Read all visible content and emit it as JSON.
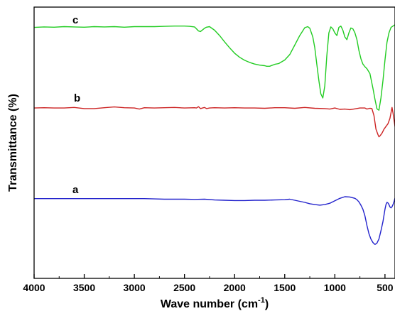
{
  "chart_data": {
    "type": "line",
    "title": "",
    "xlabel": "Wave number (cm",
    "xlabel_sup": "-1",
    "xlabel_close": ")",
    "ylabel": "Transmittance (%)",
    "x_reversed": true,
    "xlim": [
      4000,
      400
    ],
    "x_ticks": [
      "4000",
      "3500",
      "3000",
      "2500",
      "2000",
      "1500",
      "1000",
      "500"
    ],
    "x_tick_values": [
      4000,
      3500,
      3000,
      2500,
      2000,
      1500,
      1000,
      500
    ],
    "ylim": [
      0,
      100
    ],
    "y_ticks_labeled": false,
    "grid": false,
    "legend": "none",
    "series": [
      {
        "name": "c",
        "color": "#22cc22",
        "x": [
          4000,
          3900,
          3800,
          3700,
          3600,
          3500,
          3400,
          3300,
          3200,
          3100,
          3000,
          2900,
          2800,
          2700,
          2600,
          2500,
          2450,
          2400,
          2380,
          2360,
          2340,
          2320,
          2300,
          2280,
          2250,
          2200,
          2150,
          2100,
          2050,
          2000,
          1950,
          1900,
          1850,
          1800,
          1750,
          1700,
          1680,
          1650,
          1620,
          1600,
          1560,
          1500,
          1450,
          1400,
          1350,
          1300,
          1270,
          1250,
          1220,
          1200,
          1180,
          1160,
          1140,
          1120,
          1100,
          1080,
          1060,
          1040,
          1020,
          1000,
          980,
          960,
          940,
          920,
          900,
          880,
          860,
          840,
          820,
          800,
          780,
          760,
          740,
          720,
          700,
          680,
          650,
          620,
          600,
          580,
          560,
          540,
          520,
          500,
          480,
          460,
          440,
          420,
          400
        ],
        "y": [
          92.5,
          92.7,
          92.6,
          92.8,
          92.7,
          92.6,
          92.8,
          92.7,
          92.8,
          92.6,
          92.8,
          92.8,
          92.8,
          92.9,
          93.0,
          93.0,
          92.9,
          92.7,
          92.0,
          91.2,
          91.0,
          91.6,
          92.2,
          92.6,
          92.8,
          91.5,
          89.5,
          87.2,
          85.0,
          83.0,
          81.5,
          80.4,
          79.6,
          79.0,
          78.6,
          78.4,
          78.2,
          78.2,
          78.6,
          78.9,
          79.2,
          80.5,
          82.5,
          86.0,
          89.5,
          92.4,
          92.8,
          92.2,
          89.0,
          85.0,
          79.0,
          73.0,
          68.0,
          66.5,
          71.0,
          82.0,
          90.5,
          92.7,
          92.0,
          90.5,
          89.5,
          92.5,
          93.0,
          91.5,
          89.0,
          88.0,
          90.5,
          92.3,
          92.0,
          90.5,
          88.0,
          84.0,
          81.0,
          79.0,
          78.0,
          77.3,
          75.5,
          70.0,
          66.0,
          62.5,
          62.0,
          66.5,
          73.0,
          80.5,
          87.0,
          90.5,
          92.5,
          93.0,
          93.5
        ],
        "label": "c"
      },
      {
        "name": "b",
        "color": "#cc2222",
        "x": [
          4000,
          3900,
          3800,
          3700,
          3600,
          3500,
          3400,
          3300,
          3200,
          3100,
          3000,
          2950,
          2900,
          2800,
          2700,
          2600,
          2500,
          2400,
          2380,
          2360,
          2340,
          2320,
          2300,
          2280,
          2250,
          2200,
          2100,
          2000,
          1900,
          1800,
          1700,
          1600,
          1500,
          1400,
          1300,
          1200,
          1100,
          1050,
          1000,
          950,
          900,
          850,
          800,
          750,
          700,
          680,
          650,
          630,
          610,
          590,
          570,
          560,
          550,
          530,
          510,
          490,
          470,
          450,
          430,
          420,
          410,
          400
        ],
        "y": [
          62.8,
          62.9,
          62.8,
          62.8,
          63.0,
          62.6,
          62.6,
          62.9,
          63.2,
          62.9,
          62.8,
          62.4,
          62.9,
          62.8,
          62.9,
          63.0,
          62.8,
          62.9,
          62.8,
          63.3,
          62.6,
          62.8,
          63.0,
          62.6,
          62.8,
          62.9,
          62.8,
          62.9,
          62.8,
          62.8,
          62.7,
          62.9,
          62.9,
          62.7,
          63.0,
          62.7,
          62.6,
          62.4,
          62.8,
          62.3,
          62.4,
          62.2,
          62.5,
          62.8,
          62.8,
          62.4,
          62.7,
          62.6,
          60.0,
          55.0,
          53.0,
          52.2,
          52.5,
          53.5,
          55.0,
          56.0,
          57.0,
          59.0,
          63.0,
          61.0,
          58.5,
          56.0
        ],
        "label": "b"
      },
      {
        "name": "a",
        "color": "#2222cc",
        "x": [
          4000,
          3900,
          3800,
          3700,
          3600,
          3500,
          3400,
          3300,
          3200,
          3100,
          3000,
          2900,
          2800,
          2700,
          2600,
          2500,
          2400,
          2300,
          2200,
          2100,
          2000,
          1900,
          1800,
          1700,
          1600,
          1500,
          1450,
          1400,
          1350,
          1300,
          1250,
          1200,
          1150,
          1100,
          1050,
          1000,
          950,
          900,
          850,
          800,
          780,
          760,
          740,
          720,
          700,
          680,
          660,
          640,
          620,
          600,
          580,
          560,
          540,
          520,
          500,
          490,
          480,
          470,
          460,
          450,
          440,
          430,
          420,
          410,
          400
        ],
        "y": [
          29.4,
          29.4,
          29.4,
          29.4,
          29.4,
          29.4,
          29.4,
          29.4,
          29.4,
          29.4,
          29.4,
          29.4,
          29.3,
          29.2,
          29.2,
          29.2,
          29.1,
          29.2,
          28.9,
          28.8,
          28.7,
          28.7,
          28.8,
          28.8,
          28.9,
          29.0,
          29.2,
          28.8,
          28.4,
          28.0,
          27.5,
          27.2,
          27.0,
          27.2,
          27.7,
          28.6,
          29.5,
          30.1,
          30.0,
          29.5,
          29.0,
          28.2,
          27.0,
          25.5,
          23.0,
          19.5,
          16.5,
          14.5,
          13.2,
          12.5,
          13.0,
          14.5,
          17.5,
          21.0,
          25.5,
          27.2,
          28.0,
          27.8,
          27.2,
          26.3,
          26.0,
          26.4,
          27.2,
          28.2,
          29.6
        ],
        "label": "a"
      }
    ]
  }
}
